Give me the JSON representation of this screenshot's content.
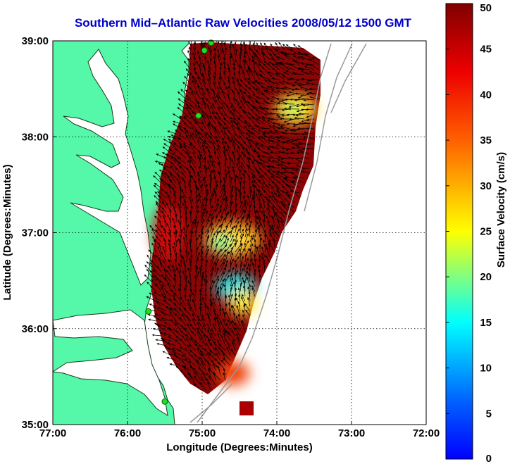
{
  "map": {
    "title": "Southern Mid–Atlantic Raw Velocities 2008/05/12 1500 GMT",
    "xlabel": "Longitude (Degrees:Minutes)",
    "ylabel": "Latitude (Degrees:Minutes)",
    "x_ticks": [
      {
        "value": -77,
        "label": "77:00"
      },
      {
        "value": -76,
        "label": "76:00"
      },
      {
        "value": -75,
        "label": "75:00"
      },
      {
        "value": -74,
        "label": "74:00"
      },
      {
        "value": -73,
        "label": "73:00"
      },
      {
        "value": -72,
        "label": "72:00"
      }
    ],
    "y_ticks": [
      {
        "value": 35,
        "label": "35:00"
      },
      {
        "value": 36,
        "label": "36:00"
      },
      {
        "value": 37,
        "label": "37:00"
      },
      {
        "value": 38,
        "label": "38:00"
      },
      {
        "value": 39,
        "label": "39:00"
      }
    ],
    "xlim": [
      -77,
      -72
    ],
    "ylim": [
      35,
      39
    ],
    "grid": true,
    "colors": {
      "land": "#55f7a8",
      "water": "#ffffff",
      "coast": "#1a3a1a",
      "bathymetry": "#999999",
      "site_marker": "#22dd22",
      "arrows": "#000000"
    }
  },
  "colorbar": {
    "label": "Surface Velocity (cm/s)",
    "min": 0,
    "max": 50,
    "ticks": [
      {
        "value": 0,
        "label": "0"
      },
      {
        "value": 5,
        "label": "5"
      },
      {
        "value": 10,
        "label": "10"
      },
      {
        "value": 15,
        "label": "15"
      },
      {
        "value": 20,
        "label": "20"
      },
      {
        "value": 25,
        "label": "25"
      },
      {
        "value": 30,
        "label": "30"
      },
      {
        "value": 35,
        "label": "35"
      },
      {
        "value": 40,
        "label": "40"
      },
      {
        "value": 45,
        "label": "45"
      },
      {
        "value": 50,
        "label": "50"
      }
    ],
    "colormap": "jet"
  },
  "sites": [
    {
      "lon": -74.88,
      "lat": 38.98
    },
    {
      "lon": -74.97,
      "lat": 38.9
    },
    {
      "lon": -75.05,
      "lat": 38.22
    },
    {
      "lon": -75.72,
      "lat": 36.18
    },
    {
      "lon": -75.5,
      "lat": 35.24
    }
  ],
  "low_speed_zones": [
    {
      "lon": -74.05,
      "lat": 38.25,
      "speed": 22
    },
    {
      "lon": -74.85,
      "lat": 36.8,
      "speed": 23
    },
    {
      "lon": -74.6,
      "lat": 36.4,
      "speed": 14
    },
    {
      "lon": -74.3,
      "lat": 36.2,
      "speed": 28
    }
  ]
}
